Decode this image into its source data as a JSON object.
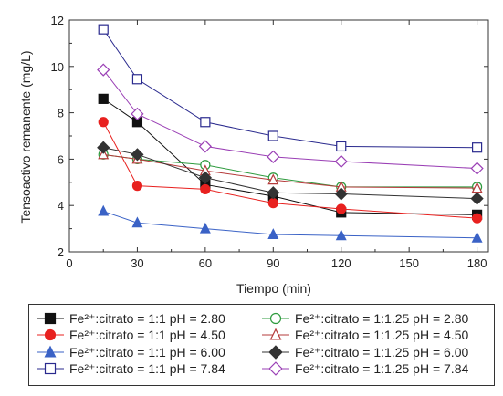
{
  "chart_data": {
    "type": "line",
    "xlabel": "Tiempo (min)",
    "ylabel": "Tensoactivo remanente (mg/L)",
    "xlim": [
      0,
      185
    ],
    "ylim": [
      2,
      12
    ],
    "xticks": [
      "0",
      "30",
      "60",
      "90",
      "120",
      "150",
      "180"
    ],
    "yticks": [
      "2",
      "4",
      "6",
      "8",
      "10",
      "12"
    ],
    "x": [
      15,
      30,
      60,
      90,
      120,
      180
    ],
    "legend_position": "bottom",
    "series": [
      {
        "name": "Fe²⁺:citrato = 1:1 pH = 2.80",
        "marker": "square-filled",
        "color": "#111111",
        "values": [
          8.6,
          7.6,
          4.9,
          4.4,
          3.7,
          3.6
        ]
      },
      {
        "name": "Fe²⁺:citrato = 1:1 pH = 4.50",
        "marker": "circle-filled",
        "color": "#e8211f",
        "values": [
          7.6,
          4.85,
          4.7,
          4.1,
          3.85,
          3.45
        ]
      },
      {
        "name": "Fe²⁺:citrato = 1:1 pH = 6.00",
        "marker": "triangle-filled",
        "color": "#3a62c6",
        "values": [
          3.75,
          3.25,
          3.0,
          2.75,
          2.7,
          2.6
        ]
      },
      {
        "name": "Fe²⁺:citrato = 1:1 pH = 7.84",
        "marker": "square-open",
        "color": "#2a2a8e",
        "values": [
          11.6,
          9.45,
          7.6,
          7.0,
          6.55,
          6.5
        ]
      },
      {
        "name": "Fe²⁺:citrato = 1:1.25 pH = 2.80",
        "marker": "circle-open",
        "color": "#2e9b3e",
        "values": [
          6.2,
          6.0,
          5.75,
          5.2,
          4.8,
          4.8
        ]
      },
      {
        "name": "Fe²⁺:citrato = 1:1.25 pH = 4.50",
        "marker": "triangle-open",
        "color": "#b53b3b",
        "values": [
          6.2,
          6.0,
          5.5,
          5.1,
          4.8,
          4.75
        ]
      },
      {
        "name": "Fe²⁺:citrato = 1:1.25 pH = 6.00",
        "marker": "diamond-filled",
        "color": "#333333",
        "values": [
          6.5,
          6.2,
          5.2,
          4.55,
          4.5,
          4.3
        ]
      },
      {
        "name": "Fe²⁺:citrato = 1:1.25 pH = 7.84",
        "marker": "diamond-open",
        "color": "#9a3fb5",
        "values": [
          9.85,
          7.95,
          6.55,
          6.1,
          5.9,
          5.6
        ]
      }
    ]
  }
}
